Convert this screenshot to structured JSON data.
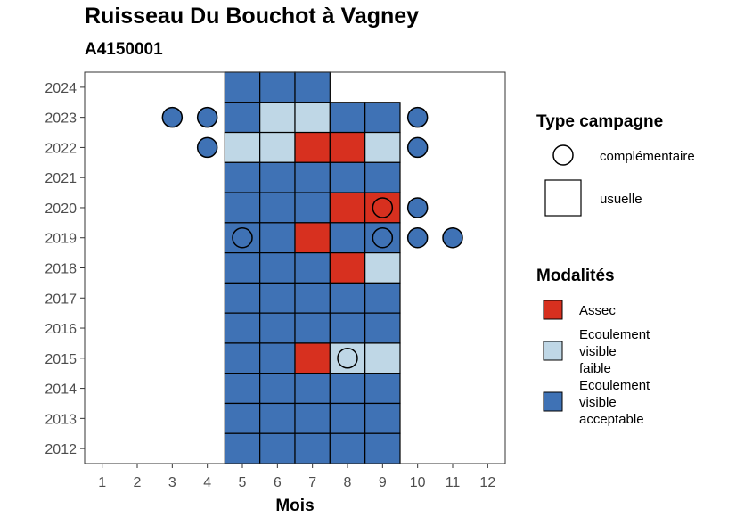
{
  "chart_data": {
    "type": "heatmap",
    "title": "Ruisseau Du Bouchot à Vagney",
    "subtitle": "A4150001",
    "xlabel": "Mois",
    "ylabel": "",
    "x_ticks": [
      "1",
      "2",
      "3",
      "4",
      "5",
      "6",
      "7",
      "8",
      "9",
      "10",
      "11",
      "12"
    ],
    "y_ticks": [
      "2012",
      "2013",
      "2014",
      "2015",
      "2016",
      "2017",
      "2018",
      "2019",
      "2020",
      "2021",
      "2022",
      "2023",
      "2024"
    ],
    "xlim": [
      0.5,
      12.5
    ],
    "ylim": [
      2011.5,
      2024.5
    ],
    "colors": {
      "Assec": "#d7301f",
      "Ecoulement visible faible": "#bfd7e6",
      "Ecoulement visible acceptable": "#3f72b5"
    },
    "legend_type": {
      "title": "Type campagne",
      "items": [
        {
          "label": "complémentaire",
          "shape": "circle"
        },
        {
          "label": "usuelle",
          "shape": "square"
        }
      ]
    },
    "legend_modalites": {
      "title": "Modalités",
      "items": [
        {
          "key": "Assec",
          "lines": [
            "Assec"
          ]
        },
        {
          "key": "Ecoulement visible faible",
          "lines": [
            "Ecoulement",
            "visible",
            "faible"
          ]
        },
        {
          "key": "Ecoulement visible acceptable",
          "lines": [
            "Ecoulement",
            "visible",
            "acceptable"
          ]
        }
      ]
    },
    "observations": [
      {
        "year": 2024,
        "month": 5,
        "type": "usuelle",
        "modalite": "Ecoulement visible acceptable"
      },
      {
        "year": 2024,
        "month": 6,
        "type": "usuelle",
        "modalite": "Ecoulement visible acceptable"
      },
      {
        "year": 2024,
        "month": 7,
        "type": "usuelle",
        "modalite": "Ecoulement visible acceptable"
      },
      {
        "year": 2023,
        "month": 3,
        "type": "complémentaire",
        "modalite": "Ecoulement visible acceptable"
      },
      {
        "year": 2023,
        "month": 4,
        "type": "complémentaire",
        "modalite": "Ecoulement visible acceptable"
      },
      {
        "year": 2023,
        "month": 5,
        "type": "usuelle",
        "modalite": "Ecoulement visible acceptable"
      },
      {
        "year": 2023,
        "month": 6,
        "type": "usuelle",
        "modalite": "Ecoulement visible faible"
      },
      {
        "year": 2023,
        "month": 7,
        "type": "usuelle",
        "modalite": "Ecoulement visible faible"
      },
      {
        "year": 2023,
        "month": 8,
        "type": "usuelle",
        "modalite": "Ecoulement visible acceptable"
      },
      {
        "year": 2023,
        "month": 9,
        "type": "usuelle",
        "modalite": "Ecoulement visible acceptable"
      },
      {
        "year": 2023,
        "month": 10,
        "type": "complémentaire",
        "modalite": "Ecoulement visible acceptable"
      },
      {
        "year": 2022,
        "month": 4,
        "type": "complémentaire",
        "modalite": "Ecoulement visible acceptable"
      },
      {
        "year": 2022,
        "month": 5,
        "type": "usuelle",
        "modalite": "Ecoulement visible faible"
      },
      {
        "year": 2022,
        "month": 6,
        "type": "usuelle",
        "modalite": "Ecoulement visible faible"
      },
      {
        "year": 2022,
        "month": 7,
        "type": "usuelle",
        "modalite": "Assec"
      },
      {
        "year": 2022,
        "month": 8,
        "type": "usuelle",
        "modalite": "Assec"
      },
      {
        "year": 2022,
        "month": 9,
        "type": "usuelle",
        "modalite": "Ecoulement visible faible"
      },
      {
        "year": 2022,
        "month": 10,
        "type": "complémentaire",
        "modalite": "Ecoulement visible acceptable"
      },
      {
        "year": 2021,
        "month": 5,
        "type": "usuelle",
        "modalite": "Ecoulement visible acceptable"
      },
      {
        "year": 2021,
        "month": 6,
        "type": "usuelle",
        "modalite": "Ecoulement visible acceptable"
      },
      {
        "year": 2021,
        "month": 7,
        "type": "usuelle",
        "modalite": "Ecoulement visible acceptable"
      },
      {
        "year": 2021,
        "month": 8,
        "type": "usuelle",
        "modalite": "Ecoulement visible acceptable"
      },
      {
        "year": 2021,
        "month": 9,
        "type": "usuelle",
        "modalite": "Ecoulement visible acceptable"
      },
      {
        "year": 2020,
        "month": 5,
        "type": "usuelle",
        "modalite": "Ecoulement visible acceptable"
      },
      {
        "year": 2020,
        "month": 6,
        "type": "usuelle",
        "modalite": "Ecoulement visible acceptable"
      },
      {
        "year": 2020,
        "month": 7,
        "type": "usuelle",
        "modalite": "Ecoulement visible acceptable"
      },
      {
        "year": 2020,
        "month": 8,
        "type": "usuelle",
        "modalite": "Assec"
      },
      {
        "year": 2020,
        "month": 9,
        "type": "usuelle",
        "modalite": "Assec"
      },
      {
        "year": 2020,
        "month": 9,
        "type": "complémentaire",
        "modalite": "Assec"
      },
      {
        "year": 2020,
        "month": 10,
        "type": "complémentaire",
        "modalite": "Ecoulement visible acceptable"
      },
      {
        "year": 2019,
        "month": 5,
        "type": "usuelle",
        "modalite": "Ecoulement visible acceptable"
      },
      {
        "year": 2019,
        "month": 5,
        "type": "complémentaire",
        "modalite": "Ecoulement visible acceptable"
      },
      {
        "year": 2019,
        "month": 6,
        "type": "usuelle",
        "modalite": "Ecoulement visible acceptable"
      },
      {
        "year": 2019,
        "month": 7,
        "type": "usuelle",
        "modalite": "Assec"
      },
      {
        "year": 2019,
        "month": 8,
        "type": "usuelle",
        "modalite": "Ecoulement visible acceptable"
      },
      {
        "year": 2019,
        "month": 9,
        "type": "usuelle",
        "modalite": "Ecoulement visible acceptable"
      },
      {
        "year": 2019,
        "month": 9,
        "type": "complémentaire",
        "modalite": "Ecoulement visible acceptable"
      },
      {
        "year": 2019,
        "month": 10,
        "type": "complémentaire",
        "modalite": "Ecoulement visible acceptable"
      },
      {
        "year": 2019,
        "month": 11,
        "type": "complémentaire",
        "modalite": "Ecoulement visible acceptable"
      },
      {
        "year": 2018,
        "month": 5,
        "type": "usuelle",
        "modalite": "Ecoulement visible acceptable"
      },
      {
        "year": 2018,
        "month": 6,
        "type": "usuelle",
        "modalite": "Ecoulement visible acceptable"
      },
      {
        "year": 2018,
        "month": 7,
        "type": "usuelle",
        "modalite": "Ecoulement visible acceptable"
      },
      {
        "year": 2018,
        "month": 8,
        "type": "usuelle",
        "modalite": "Assec"
      },
      {
        "year": 2018,
        "month": 9,
        "type": "usuelle",
        "modalite": "Ecoulement visible faible"
      },
      {
        "year": 2017,
        "month": 5,
        "type": "usuelle",
        "modalite": "Ecoulement visible acceptable"
      },
      {
        "year": 2017,
        "month": 6,
        "type": "usuelle",
        "modalite": "Ecoulement visible acceptable"
      },
      {
        "year": 2017,
        "month": 7,
        "type": "usuelle",
        "modalite": "Ecoulement visible acceptable"
      },
      {
        "year": 2017,
        "month": 8,
        "type": "usuelle",
        "modalite": "Ecoulement visible acceptable"
      },
      {
        "year": 2017,
        "month": 9,
        "type": "usuelle",
        "modalite": "Ecoulement visible acceptable"
      },
      {
        "year": 2016,
        "month": 5,
        "type": "usuelle",
        "modalite": "Ecoulement visible acceptable"
      },
      {
        "year": 2016,
        "month": 6,
        "type": "usuelle",
        "modalite": "Ecoulement visible acceptable"
      },
      {
        "year": 2016,
        "month": 7,
        "type": "usuelle",
        "modalite": "Ecoulement visible acceptable"
      },
      {
        "year": 2016,
        "month": 8,
        "type": "usuelle",
        "modalite": "Ecoulement visible acceptable"
      },
      {
        "year": 2016,
        "month": 9,
        "type": "usuelle",
        "modalite": "Ecoulement visible acceptable"
      },
      {
        "year": 2015,
        "month": 5,
        "type": "usuelle",
        "modalite": "Ecoulement visible acceptable"
      },
      {
        "year": 2015,
        "month": 6,
        "type": "usuelle",
        "modalite": "Ecoulement visible acceptable"
      },
      {
        "year": 2015,
        "month": 7,
        "type": "usuelle",
        "modalite": "Assec"
      },
      {
        "year": 2015,
        "month": 8,
        "type": "usuelle",
        "modalite": "Ecoulement visible faible"
      },
      {
        "year": 2015,
        "month": 8,
        "type": "complémentaire",
        "modalite": "Ecoulement visible faible"
      },
      {
        "year": 2015,
        "month": 9,
        "type": "usuelle",
        "modalite": "Ecoulement visible faible"
      },
      {
        "year": 2014,
        "month": 5,
        "type": "usuelle",
        "modalite": "Ecoulement visible acceptable"
      },
      {
        "year": 2014,
        "month": 6,
        "type": "usuelle",
        "modalite": "Ecoulement visible acceptable"
      },
      {
        "year": 2014,
        "month": 7,
        "type": "usuelle",
        "modalite": "Ecoulement visible acceptable"
      },
      {
        "year": 2014,
        "month": 8,
        "type": "usuelle",
        "modalite": "Ecoulement visible acceptable"
      },
      {
        "year": 2014,
        "month": 9,
        "type": "usuelle",
        "modalite": "Ecoulement visible acceptable"
      },
      {
        "year": 2013,
        "month": 5,
        "type": "usuelle",
        "modalite": "Ecoulement visible acceptable"
      },
      {
        "year": 2013,
        "month": 6,
        "type": "usuelle",
        "modalite": "Ecoulement visible acceptable"
      },
      {
        "year": 2013,
        "month": 7,
        "type": "usuelle",
        "modalite": "Ecoulement visible acceptable"
      },
      {
        "year": 2013,
        "month": 8,
        "type": "usuelle",
        "modalite": "Ecoulement visible acceptable"
      },
      {
        "year": 2013,
        "month": 9,
        "type": "usuelle",
        "modalite": "Ecoulement visible acceptable"
      },
      {
        "year": 2012,
        "month": 5,
        "type": "usuelle",
        "modalite": "Ecoulement visible acceptable"
      },
      {
        "year": 2012,
        "month": 6,
        "type": "usuelle",
        "modalite": "Ecoulement visible acceptable"
      },
      {
        "year": 2012,
        "month": 7,
        "type": "usuelle",
        "modalite": "Ecoulement visible acceptable"
      },
      {
        "year": 2012,
        "month": 8,
        "type": "usuelle",
        "modalite": "Ecoulement visible acceptable"
      },
      {
        "year": 2012,
        "month": 9,
        "type": "usuelle",
        "modalite": "Ecoulement visible acceptable"
      }
    ]
  }
}
